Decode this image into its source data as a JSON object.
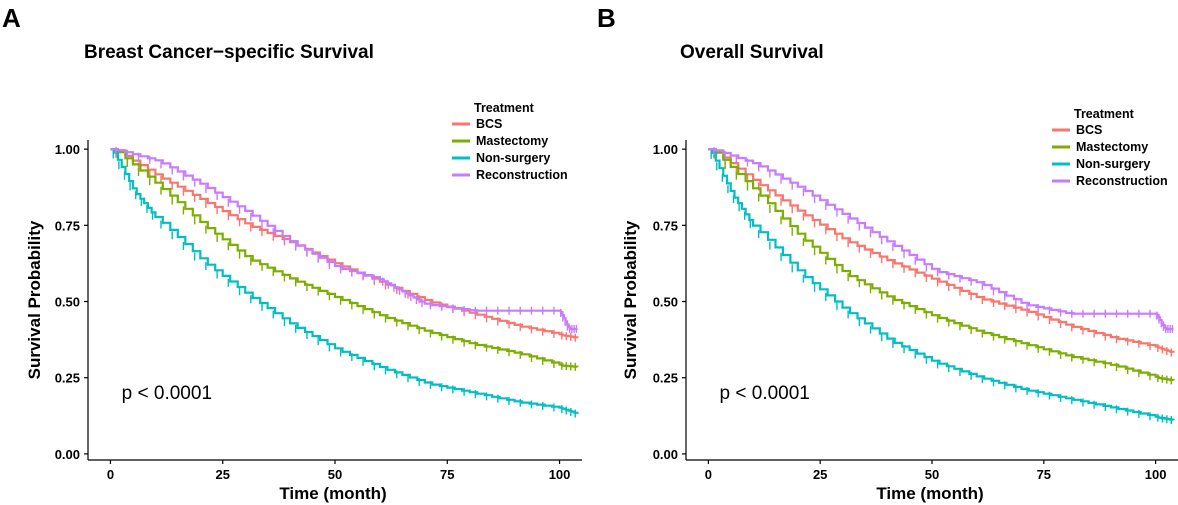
{
  "figure": {
    "legend_title": "Treatment",
    "series_colors": {
      "BCS": "#F8766D",
      "Mastectomy": "#7CAE00",
      "Non-surgery": "#00BFC4",
      "Reconstruction": "#C77CFF"
    }
  },
  "chart_data": [
    {
      "type": "line",
      "panel_label": "A",
      "title": "Breast Cancer−specific Survival",
      "xlabel": "Time (month)",
      "ylabel": "Survival Probability",
      "xlim": [
        -5,
        105
      ],
      "ylim": [
        -0.02,
        1.03
      ],
      "xticks": [
        0,
        25,
        50,
        75,
        100
      ],
      "yticks": [
        0.0,
        0.25,
        0.5,
        0.75,
        1.0
      ],
      "ytick_labels": [
        "0.00",
        "0.25",
        "0.50",
        "0.75",
        "1.00"
      ],
      "annotation": "p < 0.0001",
      "legend_position": "top-right",
      "series": [
        {
          "name": "BCS",
          "x": [
            0,
            10,
            20,
            30,
            40,
            50,
            60,
            70,
            80,
            90,
            100,
            104
          ],
          "y": [
            1.0,
            0.91,
            0.83,
            0.75,
            0.69,
            0.62,
            0.56,
            0.5,
            0.46,
            0.42,
            0.39,
            0.38
          ]
        },
        {
          "name": "Mastectomy",
          "x": [
            0,
            10,
            20,
            30,
            40,
            50,
            60,
            70,
            80,
            90,
            100,
            104
          ],
          "y": [
            1.0,
            0.88,
            0.75,
            0.64,
            0.57,
            0.51,
            0.45,
            0.4,
            0.36,
            0.33,
            0.29,
            0.285
          ]
        },
        {
          "name": "Non-surgery",
          "x": [
            0,
            5,
            10,
            20,
            30,
            40,
            50,
            60,
            70,
            80,
            90,
            100,
            104
          ],
          "y": [
            1.0,
            0.86,
            0.77,
            0.63,
            0.52,
            0.42,
            0.34,
            0.28,
            0.23,
            0.2,
            0.17,
            0.15,
            0.13
          ]
        },
        {
          "name": "Reconstruction",
          "x": [
            0,
            10,
            20,
            30,
            40,
            50,
            60,
            65,
            70,
            80,
            90,
            100,
            102,
            104
          ],
          "y": [
            1.0,
            0.96,
            0.88,
            0.79,
            0.69,
            0.61,
            0.57,
            0.53,
            0.49,
            0.47,
            0.47,
            0.47,
            0.41,
            0.41
          ]
        }
      ]
    },
    {
      "type": "line",
      "panel_label": "B",
      "title": "Overall Survival",
      "xlabel": "Time (month)",
      "ylabel": "Survival Probability",
      "xlim": [
        -5,
        105
      ],
      "ylim": [
        -0.02,
        1.03
      ],
      "xticks": [
        0,
        25,
        50,
        75,
        100
      ],
      "yticks": [
        0.0,
        0.25,
        0.5,
        0.75,
        1.0
      ],
      "ytick_labels": [
        "0.00",
        "0.25",
        "0.50",
        "0.75",
        "1.00"
      ],
      "annotation": "p < 0.0001",
      "legend_position": "top-right",
      "series": [
        {
          "name": "BCS",
          "x": [
            0,
            10,
            20,
            30,
            40,
            50,
            60,
            70,
            80,
            90,
            100,
            104
          ],
          "y": [
            1.0,
            0.89,
            0.79,
            0.7,
            0.63,
            0.57,
            0.51,
            0.47,
            0.42,
            0.38,
            0.35,
            0.33
          ]
        },
        {
          "name": "Mastectomy",
          "x": [
            0,
            10,
            20,
            30,
            40,
            50,
            60,
            70,
            80,
            90,
            100,
            104
          ],
          "y": [
            1.0,
            0.86,
            0.71,
            0.59,
            0.51,
            0.45,
            0.4,
            0.36,
            0.32,
            0.29,
            0.25,
            0.24
          ]
        },
        {
          "name": "Non-surgery",
          "x": [
            0,
            5,
            10,
            20,
            30,
            40,
            50,
            60,
            70,
            80,
            90,
            100,
            104
          ],
          "y": [
            1.0,
            0.85,
            0.74,
            0.59,
            0.47,
            0.37,
            0.3,
            0.25,
            0.21,
            0.18,
            0.15,
            0.12,
            0.11
          ]
        },
        {
          "name": "Reconstruction",
          "x": [
            0,
            10,
            20,
            30,
            40,
            50,
            60,
            70,
            80,
            90,
            100,
            102,
            104
          ],
          "y": [
            1.0,
            0.95,
            0.87,
            0.78,
            0.69,
            0.6,
            0.56,
            0.49,
            0.46,
            0.46,
            0.46,
            0.41,
            0.41
          ]
        }
      ]
    }
  ]
}
